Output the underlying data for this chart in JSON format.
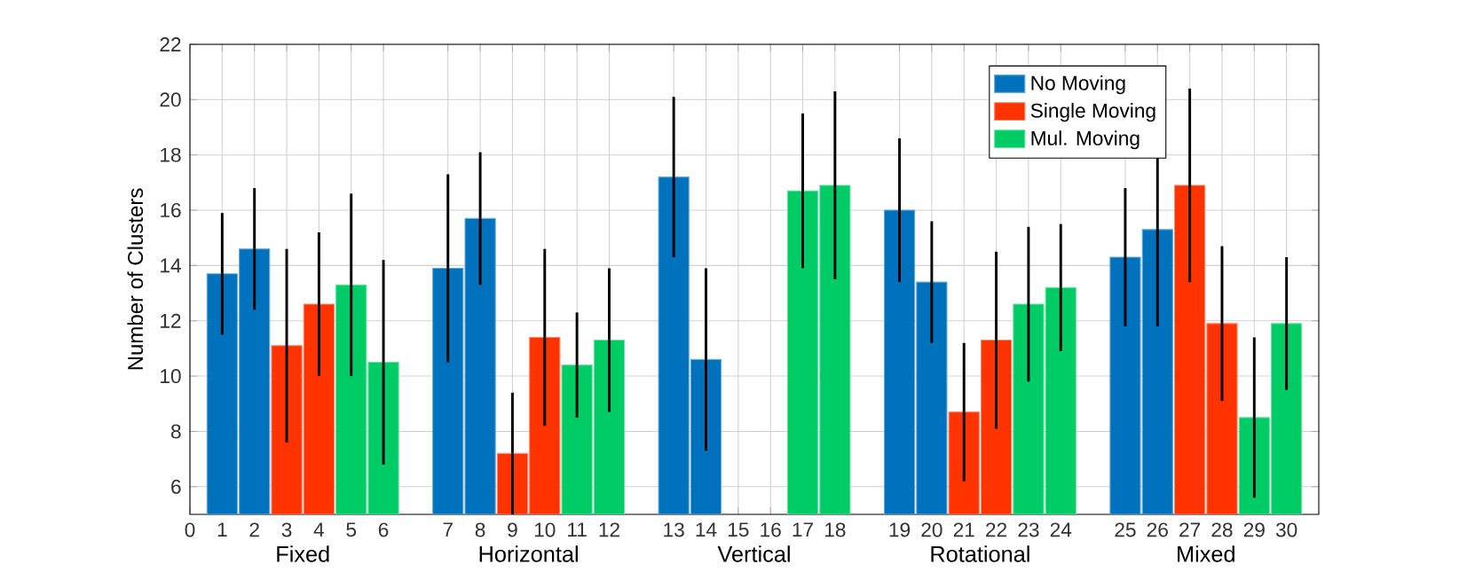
{
  "chart_data": {
    "type": "bar",
    "ylabel": "Number of Clusters",
    "categories": [
      "0",
      "1",
      "2",
      "3",
      "4",
      "5",
      "6",
      null,
      "7",
      "8",
      "9",
      "10",
      "11",
      "12",
      null,
      "13",
      "14",
      "15",
      "16",
      "17",
      "18",
      null,
      "19",
      "20",
      "21",
      "22",
      "23",
      "24",
      null,
      "25",
      "26",
      "27",
      "28",
      "29",
      "30"
    ],
    "series": [
      {
        "name": "No Moving",
        "color": "#0072bd",
        "values": [
          null,
          13.7,
          14.6,
          null,
          null,
          null,
          null,
          null,
          13.9,
          15.7,
          null,
          null,
          null,
          null,
          null,
          17.2,
          10.6,
          null,
          null,
          null,
          null,
          null,
          16.0,
          13.4,
          null,
          null,
          null,
          null,
          null,
          14.3,
          15.3,
          null,
          null,
          null,
          null
        ],
        "errors": [
          null,
          2.2,
          2.2,
          null,
          null,
          null,
          null,
          null,
          3.4,
          2.4,
          null,
          null,
          null,
          null,
          null,
          2.9,
          3.3,
          null,
          null,
          null,
          null,
          null,
          2.6,
          2.2,
          null,
          null,
          null,
          null,
          null,
          2.5,
          3.5,
          null,
          null,
          null,
          null
        ]
      },
      {
        "name": "Single Moving",
        "color": "#ff3300",
        "values": [
          null,
          null,
          null,
          11.1,
          12.6,
          null,
          null,
          null,
          null,
          null,
          7.2,
          11.4,
          null,
          null,
          null,
          null,
          null,
          null,
          null,
          null,
          null,
          null,
          null,
          null,
          8.7,
          11.3,
          null,
          null,
          null,
          null,
          null,
          16.9,
          11.9,
          null,
          null
        ],
        "errors": [
          null,
          null,
          null,
          3.5,
          2.6,
          null,
          null,
          null,
          null,
          null,
          2.2,
          3.2,
          null,
          null,
          null,
          null,
          null,
          null,
          null,
          null,
          null,
          null,
          null,
          null,
          2.5,
          3.2,
          null,
          null,
          null,
          null,
          null,
          3.5,
          2.8,
          null,
          null
        ]
      },
      {
        "name": "Mul. Moving",
        "color": "#00cc66",
        "values": [
          null,
          null,
          null,
          null,
          null,
          13.3,
          10.5,
          null,
          null,
          null,
          null,
          null,
          10.4,
          11.3,
          null,
          null,
          null,
          null,
          null,
          16.7,
          16.9,
          null,
          null,
          null,
          null,
          null,
          12.6,
          13.2,
          null,
          null,
          null,
          null,
          null,
          8.5,
          11.9
        ],
        "errors": [
          null,
          null,
          null,
          null,
          null,
          3.3,
          3.7,
          null,
          null,
          null,
          null,
          null,
          1.9,
          2.6,
          null,
          null,
          null,
          null,
          null,
          2.8,
          3.4,
          null,
          null,
          null,
          null,
          null,
          2.8,
          2.3,
          null,
          null,
          null,
          null,
          null,
          2.9,
          2.4
        ]
      }
    ],
    "ylim": [
      5,
      22
    ],
    "yticks": [
      6,
      8,
      10,
      12,
      14,
      16,
      18,
      20,
      22
    ],
    "grid": true,
    "legend": "top right",
    "annotations": [
      "Fixed",
      "Horizontal",
      "Vertical",
      "Rotational",
      "Mixed"
    ]
  }
}
